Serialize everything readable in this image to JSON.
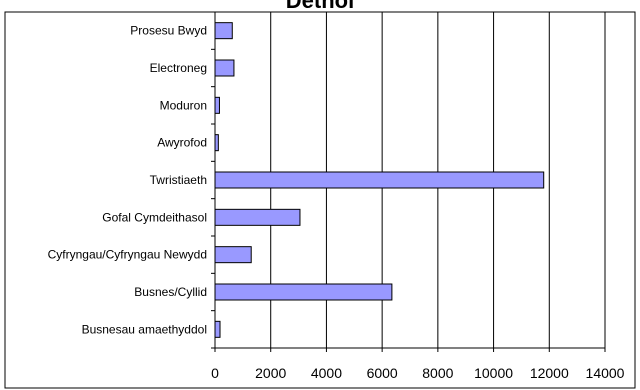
{
  "chart_data": {
    "type": "bar",
    "orientation": "horizontal",
    "title": "Dethol",
    "categories": [
      "Prosesu Bwyd",
      "Electroneg",
      "Moduron",
      "Awyrofod",
      "Twristiaeth",
      "Gofal Cymdeithasol",
      "Cyfryngau/Cyfryngau Newydd",
      "Busnes/Cyllid",
      "Busnesau amaethyddol"
    ],
    "values": [
      620,
      680,
      160,
      120,
      11800,
      3050,
      1300,
      6350,
      180
    ],
    "xlabel": "",
    "ylabel": "",
    "xlim": [
      0,
      14000
    ],
    "xticks": [
      0,
      2000,
      4000,
      6000,
      8000,
      10000,
      12000,
      14000
    ],
    "grid": "vertical",
    "legend": "none",
    "colors": {
      "bar_fill": "#9999ff",
      "bar_stroke": "#000000",
      "grid": "#000000",
      "axis": "#000000",
      "frame": "#000000",
      "background": "#ffffff"
    }
  }
}
